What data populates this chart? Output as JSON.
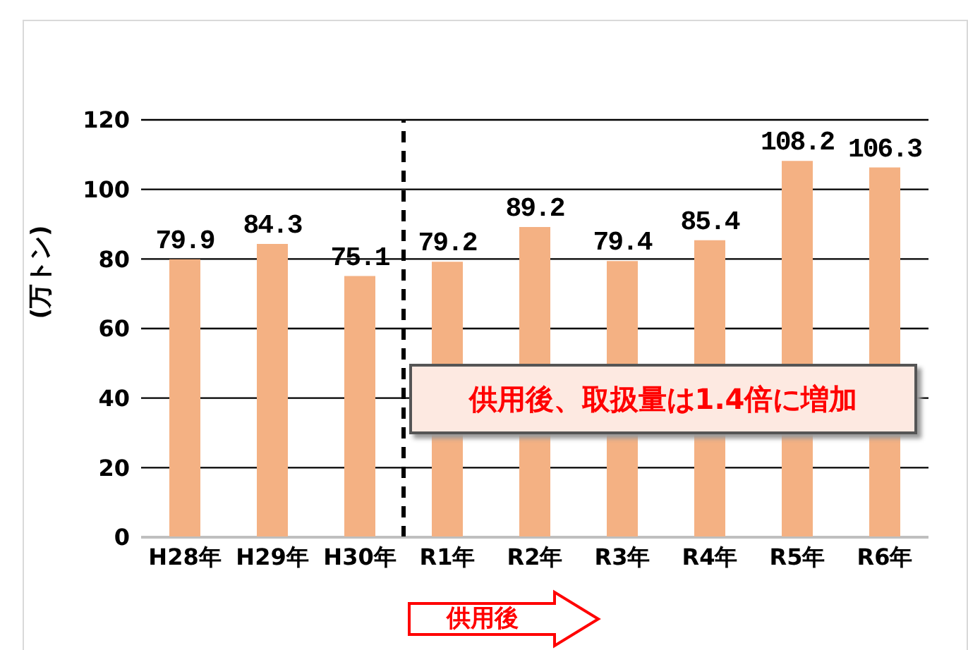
{
  "chart_data": {
    "type": "bar",
    "ylabel": "(万トン)",
    "categories": [
      "H28年",
      "H29年",
      "H30年",
      "R1年",
      "R2年",
      "R3年",
      "R4年",
      "R5年",
      "R6年"
    ],
    "values": [
      79.9,
      84.3,
      75.1,
      79.2,
      89.2,
      79.4,
      85.4,
      108.2,
      106.3
    ],
    "color": "#f4b183",
    "ylim": [
      0,
      120
    ],
    "yticks": [
      0,
      20,
      40,
      60,
      80,
      100,
      120
    ],
    "grid": "y",
    "data_labels": true,
    "legend": false,
    "ref_lines": [
      {
        "axis": "x",
        "value": "R1年",
        "color": "#000000",
        "line_style": "dashed"
      }
    ],
    "annotations": [
      "供用後、取扱量は1.4倍に増加",
      "供用後"
    ]
  }
}
